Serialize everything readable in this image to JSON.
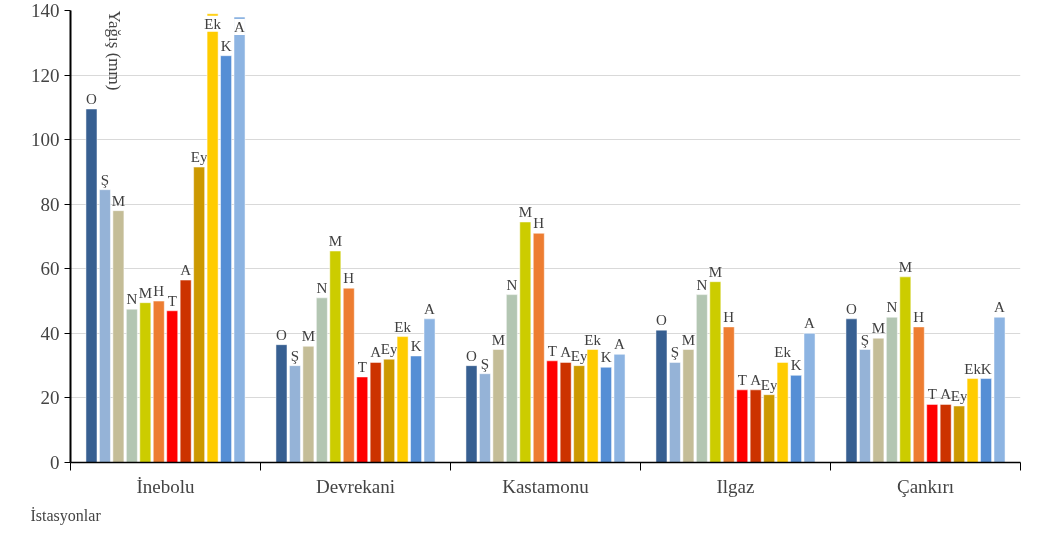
{
  "chart_data": {
    "type": "bar",
    "xlabel": "İstasyonlar",
    "ylabel": "Yağış (mm)",
    "categories": [
      "İnebolu",
      "Devrekani",
      "Kastamonu",
      "Ilgaz",
      "Çankırı"
    ],
    "series": [
      {
        "name": "O",
        "color": "#375f91",
        "values": [
          109.5,
          36.5,
          30,
          41,
          44.5
        ]
      },
      {
        "name": "Ş",
        "color": "#95b3d7",
        "values": [
          84.5,
          30,
          27.5,
          31,
          35
        ]
      },
      {
        "name": "M",
        "color": "#c4bd97",
        "values": [
          78,
          36,
          35,
          35,
          38.5
        ]
      },
      {
        "name": "N",
        "color": "#b3c6b2",
        "values": [
          47.5,
          51,
          52,
          52,
          45
        ]
      },
      {
        "name": "M",
        "color": "#cccc00",
        "values": [
          49.5,
          65.5,
          74.5,
          56,
          57.5
        ]
      },
      {
        "name": "H",
        "color": "#ed7d31",
        "values": [
          50,
          54,
          71,
          42,
          42
        ]
      },
      {
        "name": "T",
        "color": "#ff0000",
        "values": [
          47,
          26.5,
          31.5,
          22.5,
          18
        ]
      },
      {
        "name": "A",
        "color": "#cc3300",
        "values": [
          56.5,
          31,
          31,
          22.5,
          18
        ]
      },
      {
        "name": "Ey",
        "color": "#cc9900",
        "values": [
          91.5,
          32,
          30,
          21,
          17.5
        ]
      },
      {
        "name": "Ek",
        "color": "#ffcc00",
        "values": [
          139,
          39,
          35,
          31,
          26
        ]
      },
      {
        "name": "K",
        "color": "#558ed5",
        "values": [
          126,
          33,
          29.5,
          27,
          26
        ]
      },
      {
        "name": "A",
        "color": "#8db4e2",
        "values": [
          138,
          44.5,
          33.5,
          40,
          45
        ]
      }
    ],
    "ylim": [
      0,
      140
    ],
    "yticks": [
      0,
      20,
      40,
      60,
      80,
      100,
      120,
      140
    ],
    "grid": "y"
  }
}
